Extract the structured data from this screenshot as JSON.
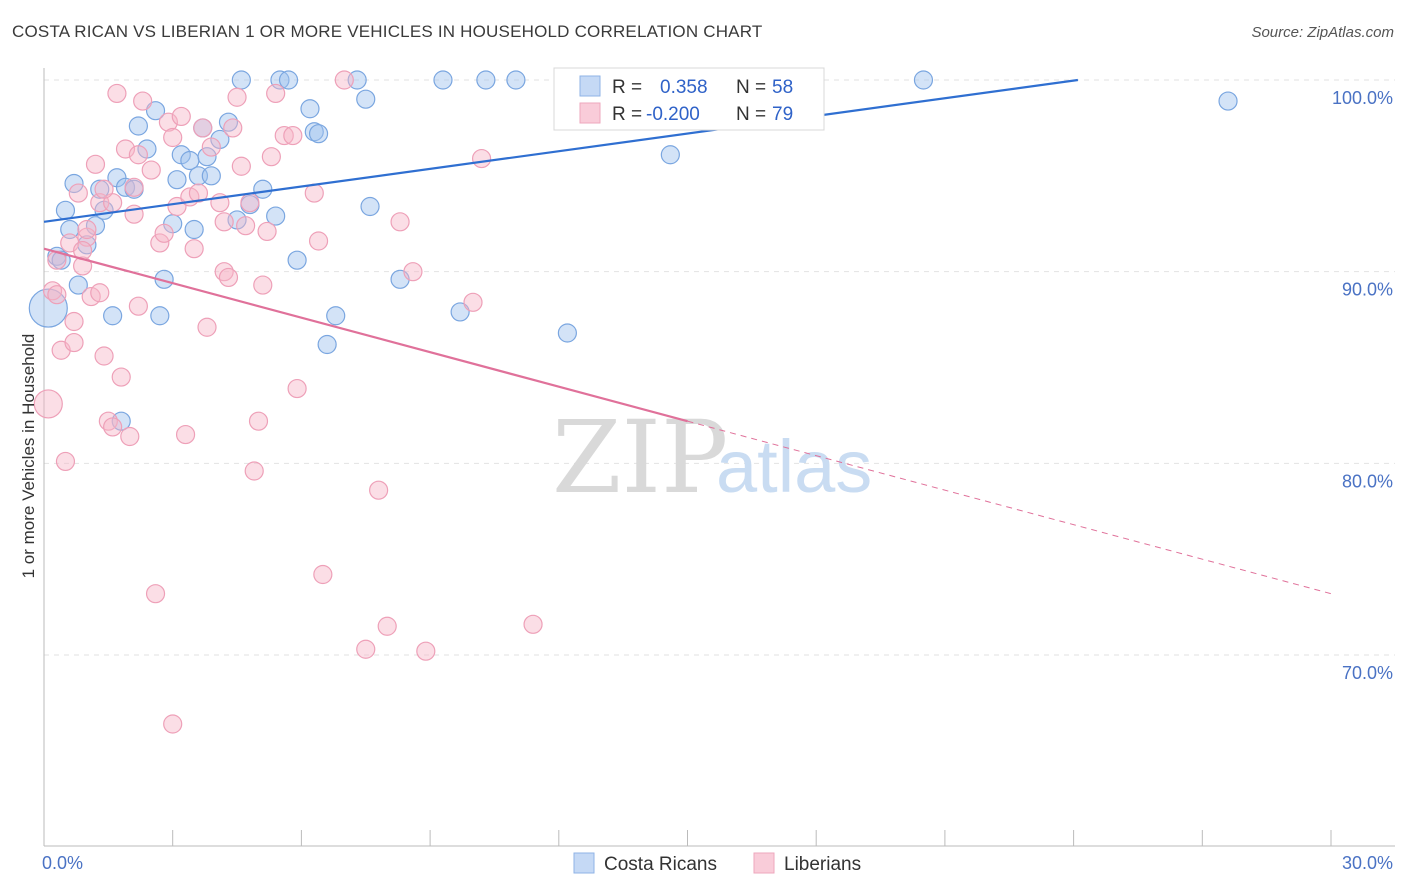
{
  "title": "COSTA RICAN VS LIBERIAN 1 OR MORE VEHICLES IN HOUSEHOLD CORRELATION CHART",
  "source": "Source: ZipAtlas.com",
  "watermark": {
    "zip": "ZIP",
    "atlas": "atlas"
  },
  "legend": {
    "rows": [
      {
        "r_label": "R =",
        "r_value": "0.358",
        "n_label": "N =",
        "n_value": "58",
        "color": "#9ec0ee"
      },
      {
        "r_label": "R =",
        "r_value": "-0.200",
        "n_label": "N =",
        "n_value": "79",
        "color": "#f6b6c8"
      }
    ]
  },
  "chart_data": {
    "type": "scatter",
    "title": "COSTA RICAN VS LIBERIAN 1 OR MORE VEHICLES IN HOUSEHOLD CORRELATION CHART",
    "xlabel": "",
    "ylabel": "1 or more Vehicles in Household",
    "xlim": [
      0,
      30
    ],
    "ylim": [
      60,
      100.8
    ],
    "x_tick_labels": [
      "0.0%",
      "30.0%"
    ],
    "y_ticks": [
      100,
      90,
      80,
      70
    ],
    "y_tick_labels": [
      "100.0%",
      "90.0%",
      "80.0%",
      "70.0%"
    ],
    "grid": true,
    "legend_position": "bottom-center",
    "series": [
      {
        "name": "Costa Ricans",
        "color": "#9ec0ee",
        "edge": "#7aa6e0",
        "trend": {
          "x": [
            0,
            24.1
          ],
          "y": [
            92.6,
            100
          ],
          "color": "#2f6fd1",
          "dashed_extension": false
        },
        "points": [
          [
            0.1,
            88.1
          ],
          [
            0.3,
            90.8
          ],
          [
            0.4,
            90.6
          ],
          [
            0.5,
            93.2
          ],
          [
            0.6,
            92.2
          ],
          [
            0.7,
            94.6
          ],
          [
            0.8,
            89.3
          ],
          [
            1.0,
            91.4
          ],
          [
            1.2,
            92.4
          ],
          [
            1.3,
            94.3
          ],
          [
            1.4,
            93.2
          ],
          [
            1.6,
            87.7
          ],
          [
            1.7,
            94.9
          ],
          [
            1.8,
            82.2
          ],
          [
            1.9,
            94.4
          ],
          [
            2.1,
            94.3
          ],
          [
            2.2,
            97.6
          ],
          [
            2.4,
            96.4
          ],
          [
            2.6,
            98.4
          ],
          [
            2.7,
            87.7
          ],
          [
            2.8,
            89.6
          ],
          [
            3.0,
            92.5
          ],
          [
            3.1,
            94.8
          ],
          [
            3.2,
            96.1
          ],
          [
            3.4,
            95.8
          ],
          [
            3.5,
            92.2
          ],
          [
            3.6,
            95.0
          ],
          [
            3.7,
            97.5
          ],
          [
            3.8,
            96.0
          ],
          [
            3.9,
            95.0
          ],
          [
            4.1,
            96.9
          ],
          [
            4.3,
            97.8
          ],
          [
            4.5,
            92.7
          ],
          [
            4.6,
            100
          ],
          [
            4.8,
            93.5
          ],
          [
            5.1,
            94.3
          ],
          [
            5.4,
            92.9
          ],
          [
            5.5,
            100
          ],
          [
            5.7,
            100
          ],
          [
            5.9,
            90.6
          ],
          [
            6.2,
            98.5
          ],
          [
            6.3,
            97.3
          ],
          [
            6.4,
            97.2
          ],
          [
            6.6,
            86.2
          ],
          [
            6.8,
            87.7
          ],
          [
            7.3,
            100
          ],
          [
            7.5,
            99.0
          ],
          [
            7.6,
            93.4
          ],
          [
            8.3,
            89.6
          ],
          [
            9.3,
            100
          ],
          [
            9.7,
            87.9
          ],
          [
            10.3,
            100
          ],
          [
            11.0,
            100
          ],
          [
            12.2,
            86.8
          ],
          [
            14.6,
            96.1
          ],
          [
            16.5,
            100
          ],
          [
            20.5,
            100
          ],
          [
            27.6,
            98.9
          ]
        ]
      },
      {
        "name": "Liberians",
        "color": "#f6b6c8",
        "edge": "#eea0b8",
        "trend": {
          "x": [
            0,
            15.0
          ],
          "y": [
            91.2,
            82.2
          ],
          "color": "#e0719a",
          "dashed_extension": true,
          "dashed_to": [
            30,
            73.2
          ]
        },
        "points": [
          [
            0.1,
            83.1
          ],
          [
            0.2,
            89.0
          ],
          [
            0.3,
            88.8
          ],
          [
            0.3,
            90.6
          ],
          [
            0.4,
            85.9
          ],
          [
            0.5,
            80.1
          ],
          [
            0.6,
            91.5
          ],
          [
            0.7,
            86.3
          ],
          [
            0.7,
            87.4
          ],
          [
            0.8,
            94.1
          ],
          [
            0.9,
            90.3
          ],
          [
            1.0,
            91.8
          ],
          [
            1.0,
            92.2
          ],
          [
            1.1,
            88.7
          ],
          [
            1.2,
            95.6
          ],
          [
            1.3,
            88.9
          ],
          [
            1.3,
            93.6
          ],
          [
            1.4,
            85.6
          ],
          [
            1.5,
            82.2
          ],
          [
            1.6,
            93.6
          ],
          [
            1.6,
            81.9
          ],
          [
            1.7,
            99.3
          ],
          [
            1.8,
            84.5
          ],
          [
            1.9,
            96.4
          ],
          [
            2.0,
            81.4
          ],
          [
            2.1,
            93.0
          ],
          [
            2.2,
            96.1
          ],
          [
            2.2,
            88.2
          ],
          [
            2.3,
            98.9
          ],
          [
            2.5,
            95.3
          ],
          [
            2.6,
            73.2
          ],
          [
            2.7,
            91.5
          ],
          [
            2.8,
            92.0
          ],
          [
            2.9,
            97.8
          ],
          [
            3.0,
            66.4
          ],
          [
            3.1,
            93.4
          ],
          [
            3.2,
            98.1
          ],
          [
            3.3,
            81.5
          ],
          [
            3.4,
            93.9
          ],
          [
            3.5,
            91.2
          ],
          [
            3.6,
            94.1
          ],
          [
            3.7,
            97.5
          ],
          [
            3.8,
            87.1
          ],
          [
            3.9,
            96.5
          ],
          [
            4.1,
            93.6
          ],
          [
            4.2,
            90.0
          ],
          [
            4.3,
            89.7
          ],
          [
            4.4,
            97.5
          ],
          [
            4.5,
            99.1
          ],
          [
            4.6,
            95.5
          ],
          [
            4.7,
            92.4
          ],
          [
            4.8,
            93.6
          ],
          [
            4.9,
            79.6
          ],
          [
            5.0,
            82.2
          ],
          [
            5.1,
            89.3
          ],
          [
            5.2,
            92.1
          ],
          [
            5.3,
            96.0
          ],
          [
            5.4,
            99.3
          ],
          [
            5.6,
            97.1
          ],
          [
            5.8,
            97.1
          ],
          [
            5.9,
            83.9
          ],
          [
            6.3,
            94.1
          ],
          [
            6.4,
            91.6
          ],
          [
            6.5,
            74.2
          ],
          [
            7.0,
            100
          ],
          [
            7.5,
            70.3
          ],
          [
            7.8,
            78.6
          ],
          [
            8.0,
            71.5
          ],
          [
            8.3,
            92.6
          ],
          [
            8.6,
            90.0
          ],
          [
            8.9,
            70.2
          ],
          [
            10.0,
            88.4
          ],
          [
            10.2,
            95.9
          ],
          [
            11.4,
            71.6
          ],
          [
            1.4,
            94.3
          ],
          [
            0.9,
            91.1
          ],
          [
            2.1,
            94.4
          ],
          [
            3.0,
            97.0
          ],
          [
            4.2,
            92.6
          ]
        ]
      }
    ]
  }
}
